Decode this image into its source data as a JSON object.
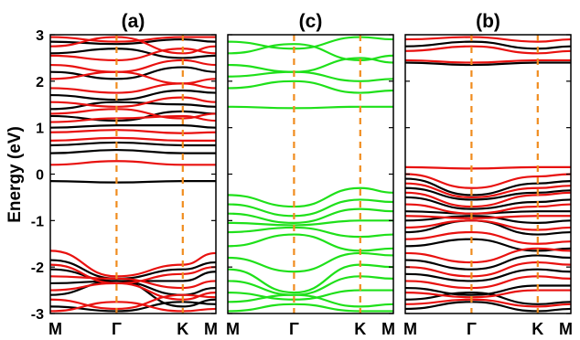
{
  "chart_data": {
    "type": "line",
    "ylabel": "Energy (eV)",
    "ylim": [
      -3,
      3
    ],
    "yticks": [
      "3",
      "2",
      "1",
      "0",
      "-1",
      "-2",
      "-3"
    ],
    "xticks": [
      "M",
      "Γ",
      "K",
      "M"
    ],
    "xtick_positions": [
      0,
      1,
      2,
      2.5
    ],
    "high_symmetry_line_color": "#f08c1e",
    "panels": [
      {
        "title": "(a)",
        "series": [
          {
            "color": "#000000",
            "values": [
              [
                -0.15,
                -0.18,
                -0.15,
                -0.15
              ],
              [
                0.45,
                0.52,
                0.45,
                0.45
              ],
              [
                0.62,
                0.68,
                0.62,
                0.62
              ],
              [
                1.0,
                1.05,
                1.05,
                1.0
              ],
              [
                1.25,
                1.15,
                1.35,
                1.3
              ],
              [
                1.4,
                1.55,
                1.5,
                1.45
              ],
              [
                1.7,
                1.6,
                1.8,
                1.75
              ],
              [
                2.2,
                2.05,
                2.3,
                2.2
              ],
              [
                2.6,
                2.7,
                2.5,
                2.55
              ],
              [
                2.85,
                2.8,
                2.9,
                2.85
              ],
              [
                -1.85,
                -2.25,
                -2.05,
                -1.9
              ],
              [
                -2.05,
                -2.3,
                -2.3,
                -2.1
              ],
              [
                -2.35,
                -2.3,
                -2.6,
                -2.45
              ],
              [
                -2.6,
                -2.3,
                -2.85,
                -2.7
              ],
              [
                -2.85,
                -2.95,
                -2.75,
                -2.8
              ]
            ]
          },
          {
            "color": "#e8110f",
            "values": [
              [
                0.2,
                0.28,
                0.2,
                0.2
              ],
              [
                0.72,
                0.78,
                0.72,
                0.72
              ],
              [
                0.9,
                0.95,
                0.88,
                0.9
              ],
              [
                1.12,
                1.2,
                1.25,
                1.15
              ],
              [
                1.3,
                1.4,
                1.2,
                1.3
              ],
              [
                1.55,
                1.45,
                1.65,
                1.55
              ],
              [
                1.85,
                1.75,
                1.95,
                1.85
              ],
              [
                2.05,
                2.2,
                1.95,
                2.05
              ],
              [
                2.35,
                2.2,
                2.45,
                2.35
              ],
              [
                2.55,
                2.45,
                2.7,
                2.6
              ],
              [
                2.75,
                2.95,
                2.6,
                2.75
              ],
              [
                2.95,
                2.85,
                2.95,
                2.95
              ],
              [
                -1.65,
                -2.2,
                -1.95,
                -1.7
              ],
              [
                -1.95,
                -2.35,
                -2.15,
                -2.0
              ],
              [
                -2.2,
                -2.25,
                -2.45,
                -2.3
              ],
              [
                -2.5,
                -2.35,
                -2.7,
                -2.55
              ],
              [
                -2.7,
                -2.9,
                -2.6,
                -2.65
              ],
              [
                -2.95,
                -2.75,
                -2.95,
                -2.9
              ]
            ]
          }
        ]
      },
      {
        "title": "(c)",
        "series": [
          {
            "color": "#1fe01a",
            "values": [
              [
                1.45,
                1.42,
                1.45,
                1.45
              ],
              [
                1.85,
                2.0,
                1.75,
                1.8
              ],
              [
                2.1,
                2.2,
                2.0,
                2.05
              ],
              [
                2.35,
                2.2,
                2.5,
                2.4
              ],
              [
                2.6,
                2.8,
                2.45,
                2.55
              ],
              [
                2.85,
                2.7,
                2.95,
                2.9
              ],
              [
                -0.45,
                -0.7,
                -0.3,
                -0.4
              ],
              [
                -0.65,
                -0.9,
                -0.55,
                -0.6
              ],
              [
                -0.85,
                -1.05,
                -0.75,
                -0.8
              ],
              [
                -1.05,
                -1.1,
                -1.0,
                -1.0
              ],
              [
                -1.25,
                -1.15,
                -1.35,
                -1.3
              ],
              [
                -1.55,
                -1.3,
                -1.65,
                -1.6
              ],
              [
                -1.8,
                -2.1,
                -1.7,
                -1.75
              ],
              [
                -2.05,
                -2.55,
                -1.95,
                -2.0
              ],
              [
                -2.3,
                -2.6,
                -2.2,
                -2.25
              ],
              [
                -2.55,
                -2.7,
                -2.5,
                -2.5
              ],
              [
                -2.75,
                -2.6,
                -2.85,
                -2.8
              ],
              [
                -2.95,
                -2.8,
                -2.95,
                -2.95
              ]
            ]
          }
        ]
      },
      {
        "title": "(b)",
        "series": [
          {
            "color": "#000000",
            "values": [
              [
                -0.1,
                -0.45,
                -0.2,
                -0.15
              ],
              [
                -0.3,
                -0.55,
                -0.4,
                -0.35
              ],
              [
                -0.5,
                -0.75,
                -0.6,
                -0.55
              ],
              [
                -0.8,
                -0.85,
                -0.8,
                -0.8
              ],
              [
                -1.0,
                -0.9,
                -1.05,
                -1.0
              ],
              [
                -1.25,
                -1.0,
                -1.3,
                -1.25
              ],
              [
                -1.55,
                -1.4,
                -1.65,
                -1.6
              ],
              [
                -1.85,
                -2.05,
                -1.75,
                -1.8
              ],
              [
                -2.15,
                -2.3,
                -2.05,
                -2.1
              ],
              [
                -2.45,
                -2.6,
                -2.4,
                -2.4
              ],
              [
                -2.7,
                -2.55,
                -2.8,
                -2.75
              ],
              [
                -2.9,
                -2.75,
                -2.95,
                -2.9
              ],
              [
                2.4,
                2.35,
                2.4,
                2.4
              ],
              [
                2.75,
                2.85,
                2.7,
                2.75
              ]
            ]
          },
          {
            "color": "#e8110f",
            "values": [
              [
                0.15,
                0.12,
                0.15,
                0.15
              ],
              [
                0.0,
                -0.3,
                -0.05,
                0.0
              ],
              [
                -0.2,
                -0.5,
                -0.3,
                -0.25
              ],
              [
                -0.4,
                -0.7,
                -0.45,
                -0.4
              ],
              [
                -0.65,
                -0.85,
                -0.7,
                -0.65
              ],
              [
                -0.9,
                -0.95,
                -0.9,
                -0.9
              ],
              [
                -1.15,
                -1.0,
                -1.2,
                -1.15
              ],
              [
                -1.4,
                -1.25,
                -1.5,
                -1.45
              ],
              [
                -1.7,
                -1.9,
                -1.6,
                -1.65
              ],
              [
                -2.0,
                -2.2,
                -1.9,
                -1.95
              ],
              [
                -2.3,
                -2.45,
                -2.2,
                -2.25
              ],
              [
                -2.55,
                -2.65,
                -2.5,
                -2.5
              ],
              [
                -2.8,
                -2.7,
                -2.85,
                -2.8
              ],
              [
                2.45,
                2.4,
                2.45,
                2.45
              ],
              [
                2.65,
                2.75,
                2.6,
                2.65
              ],
              [
                2.9,
                2.95,
                2.85,
                2.9
              ]
            ]
          }
        ]
      }
    ]
  }
}
